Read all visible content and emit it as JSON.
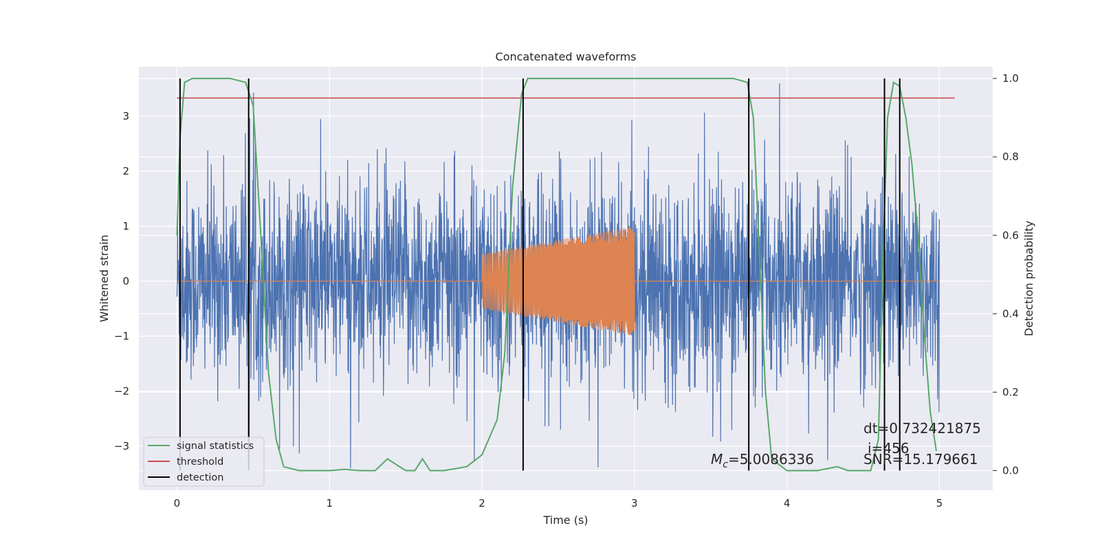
{
  "chart_data": {
    "type": "line",
    "title": "Concatenated waveforms",
    "xlabel": "Time (s)",
    "ylabel": "Whitened strain",
    "y2label": "Detection probability",
    "xlim": [
      -0.25,
      5.35
    ],
    "ylim": [
      -3.8,
      3.9
    ],
    "y2lim": [
      -0.05,
      1.03
    ],
    "xticks": [
      0,
      1,
      2,
      3,
      4,
      5
    ],
    "xtick_labels": [
      "0",
      "1",
      "2",
      "3",
      "4",
      "5"
    ],
    "yticks": [
      3,
      2,
      1,
      0,
      -1,
      -2,
      -3
    ],
    "ytick_labels": [
      "3",
      "2",
      "1",
      "0",
      "−1",
      "−2",
      "−3"
    ],
    "y2ticks": [
      1.0,
      0.8,
      0.6,
      0.4,
      0.2,
      0.0
    ],
    "y2tick_labels": [
      "1.0",
      "0.8",
      "0.6",
      "0.4",
      "0.2",
      "0.0"
    ],
    "grid": true,
    "legend_position": "lower-left",
    "colors": {
      "background": "#eaeaf2",
      "grid": "#ffffff",
      "noise": "#4c72b0",
      "injection": "#dd8452",
      "signal_statistics": "#55a868",
      "threshold": "#c44e52",
      "detection": "#000000"
    },
    "series": [
      {
        "name": "noise",
        "axis": "left",
        "x_range": [
          0.0,
          5.0
        ],
        "typical_amplitude": [
          -1.2,
          1.2
        ],
        "peak_amplitude": [
          -3.4,
          3.6
        ]
      },
      {
        "name": "injected waveform",
        "axis": "left",
        "zero_outside": [
          0.0,
          5.0
        ],
        "chirp_interval": [
          2.0,
          3.0
        ],
        "amplitude_start": 0.5,
        "amplitude_end": 1.0
      },
      {
        "name": "signal statistics",
        "axis": "right",
        "x": [
          0.0,
          0.02,
          0.05,
          0.1,
          0.2,
          0.35,
          0.45,
          0.5,
          0.55,
          0.6,
          0.65,
          0.7,
          0.8,
          1.0,
          1.1,
          1.2,
          1.3,
          1.38,
          1.42,
          1.5,
          1.56,
          1.61,
          1.66,
          1.75,
          1.9,
          2.0,
          2.1,
          2.15,
          2.2,
          2.26,
          2.3,
          2.4,
          2.6,
          3.0,
          3.4,
          3.65,
          3.74,
          3.78,
          3.82,
          3.86,
          3.9,
          4.0,
          4.2,
          4.33,
          4.4,
          4.55,
          4.6,
          4.63,
          4.66,
          4.7,
          4.74,
          4.78,
          4.82,
          4.86,
          4.9,
          4.94,
          4.98
        ],
        "y": [
          0.6,
          0.85,
          0.99,
          1.0,
          1.0,
          1.0,
          0.99,
          0.93,
          0.6,
          0.25,
          0.08,
          0.01,
          0.0,
          0.0,
          0.003,
          0.0,
          0.0,
          0.03,
          0.02,
          0.0,
          0.0,
          0.03,
          0.0,
          0.0,
          0.01,
          0.04,
          0.13,
          0.3,
          0.72,
          0.96,
          1.0,
          1.0,
          1.0,
          1.0,
          1.0,
          1.0,
          0.99,
          0.9,
          0.55,
          0.2,
          0.03,
          0.0,
          0.0,
          0.01,
          0.0,
          0.0,
          0.08,
          0.55,
          0.9,
          0.99,
          0.98,
          0.9,
          0.78,
          0.6,
          0.35,
          0.15,
          0.05
        ]
      },
      {
        "name": "threshold",
        "axis": "right",
        "x": [
          0.0,
          5.1
        ],
        "y": [
          0.95,
          0.95
        ]
      },
      {
        "name": "detection",
        "axis": "right",
        "x": [
          0.02,
          0.47,
          2.27,
          3.75,
          4.64,
          4.74
        ],
        "y_range": [
          0.0,
          1.0
        ]
      }
    ],
    "legend": [
      {
        "label": "signal statistics",
        "color": "#55a868"
      },
      {
        "label": "threshold",
        "color": "#c44e52"
      },
      {
        "label": "detection",
        "color": "#000000"
      }
    ],
    "annotations": {
      "mc": "=5.0086336",
      "dt": "dt=0.732421875",
      "i": "i=456",
      "snr": "SNR=15.179661"
    }
  }
}
